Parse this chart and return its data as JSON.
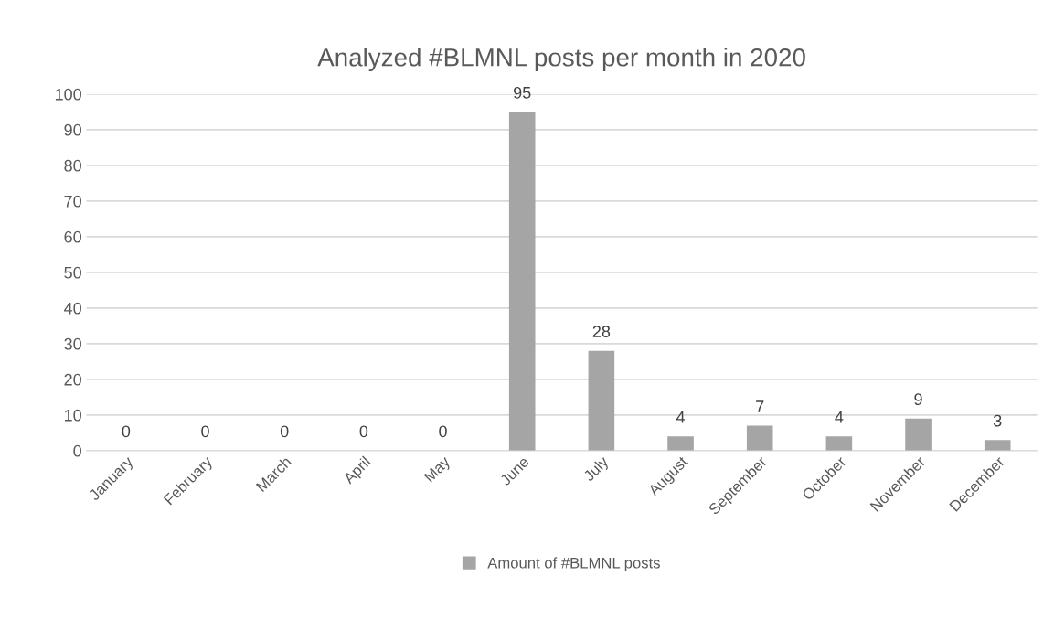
{
  "chart_data": {
    "type": "bar",
    "title": "Analyzed #BLMNL posts per month in 2020",
    "categories": [
      "January",
      "February",
      "March",
      "April",
      "May",
      "June",
      "July",
      "August",
      "September",
      "October",
      "November",
      "December"
    ],
    "series": [
      {
        "name": "Amount of #BLMNL posts",
        "color": "#a5a5a5",
        "values": [
          0,
          0,
          0,
          0,
          0,
          95,
          28,
          4,
          7,
          4,
          9,
          3
        ]
      }
    ],
    "ylim": [
      0,
      100
    ],
    "yticks": [
      0,
      10,
      20,
      30,
      40,
      50,
      60,
      70,
      80,
      90,
      100
    ],
    "grid": "y",
    "legend": "bottom",
    "data_labels": true
  }
}
